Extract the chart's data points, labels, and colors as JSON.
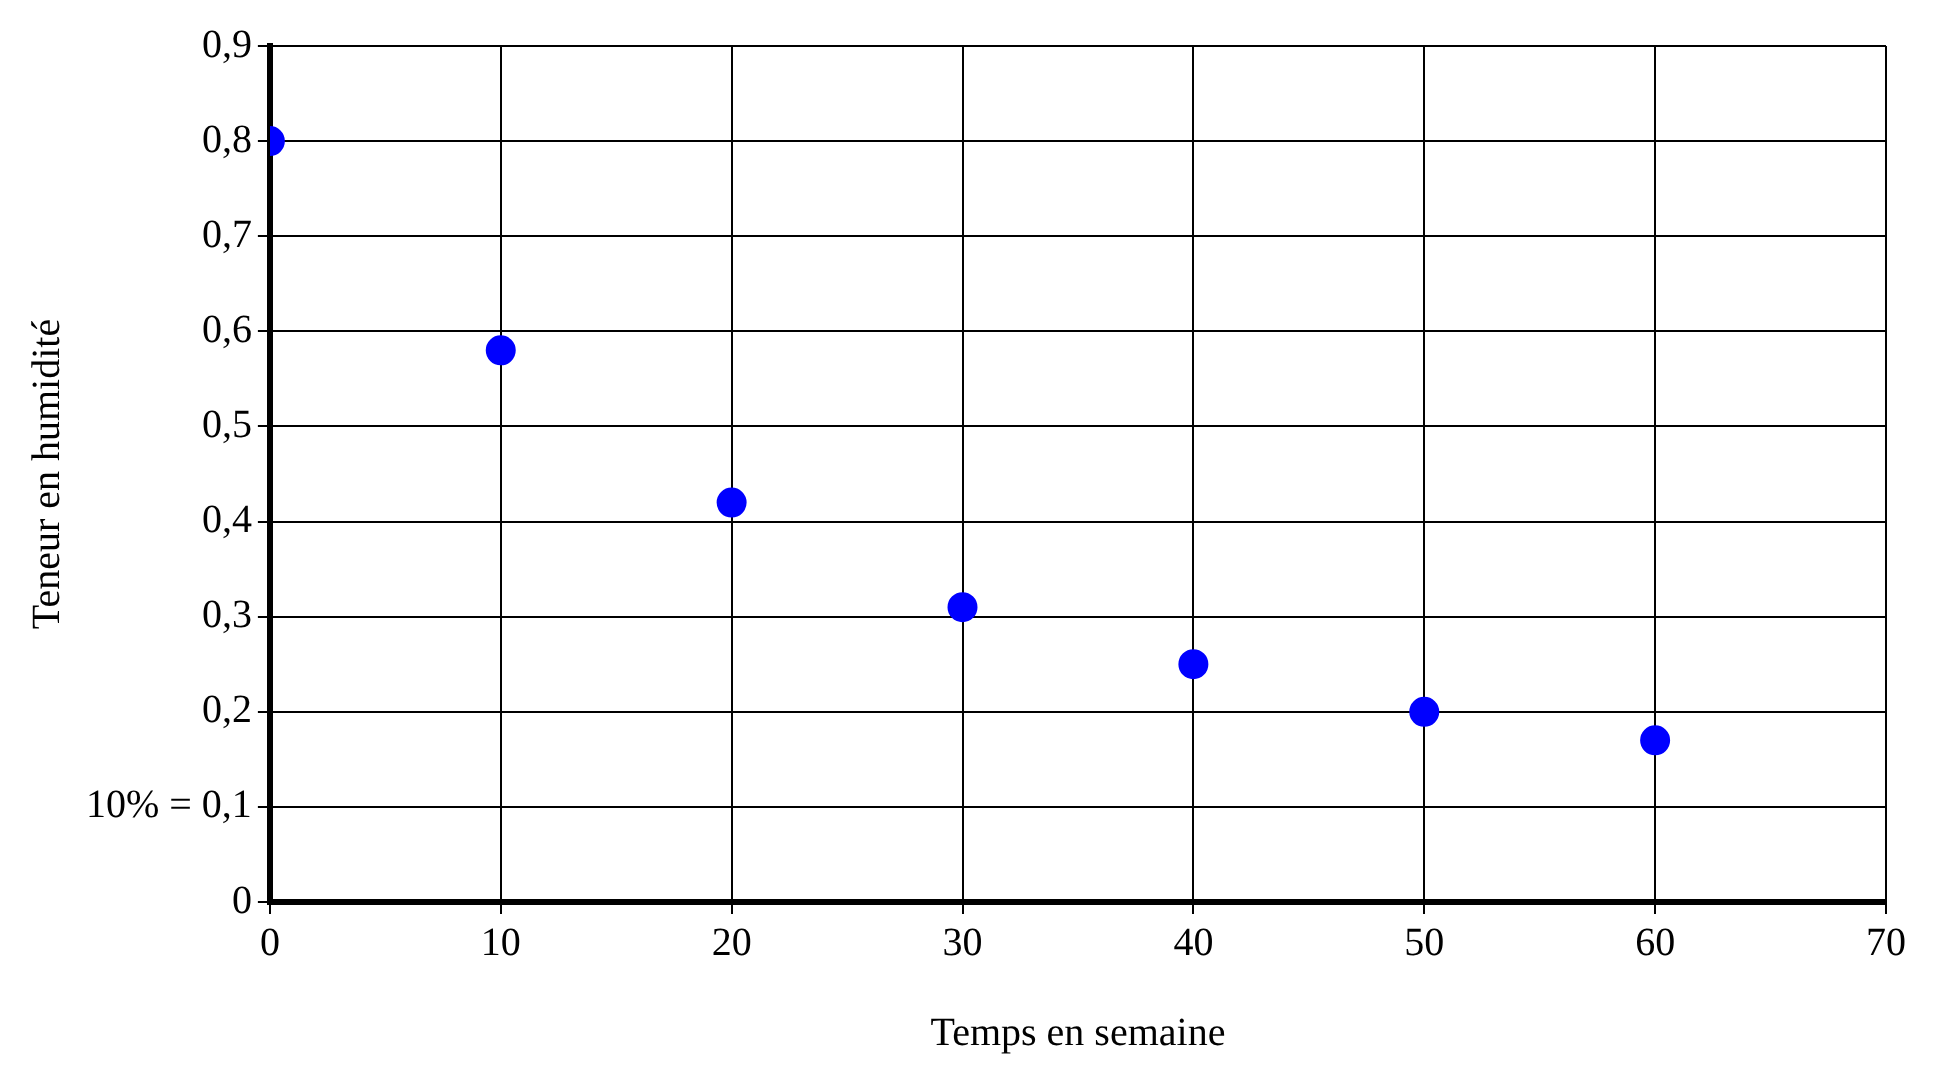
{
  "chart_data": {
    "type": "scatter",
    "xlabel": "Temps en semaine",
    "ylabel": "Teneur en humidité",
    "x": [
      0,
      10,
      20,
      30,
      40,
      50,
      60
    ],
    "series": [
      {
        "color": "#0000ff",
        "values": [
          0.8,
          0.58,
          0.42,
          0.31,
          0.25,
          0.2,
          0.17
        ]
      }
    ],
    "xlim": [
      0,
      70
    ],
    "xticks": [
      0,
      10,
      20,
      30,
      40,
      50,
      60,
      70
    ],
    "ylim": [
      0,
      0.9
    ],
    "yticks": [
      0,
      {
        "value": 0.1,
        "label": "10% = 0,1"
      },
      {
        "value": 0.2,
        "label": "0,2"
      },
      {
        "value": 0.3,
        "label": "0,3"
      },
      {
        "value": 0.4,
        "label": "0,4"
      },
      {
        "value": 0.5,
        "label": "0,5"
      },
      {
        "value": 0.6,
        "label": "0,6"
      },
      {
        "value": 0.7,
        "label": "0,7"
      },
      {
        "value": 0.8,
        "label": "0,8"
      },
      {
        "value": 0.9,
        "label": "0,9"
      }
    ],
    "grid": true,
    "marker": "circle",
    "legend": false
  }
}
